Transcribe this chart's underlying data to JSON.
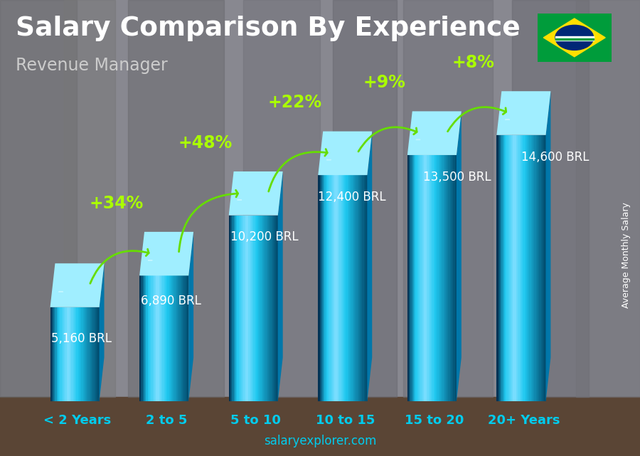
{
  "title": "Salary Comparison By Experience",
  "subtitle": "Revenue Manager",
  "ylabel": "Average Monthly Salary",
  "website": "salaryexplorer.com",
  "categories": [
    "< 2 Years",
    "2 to 5",
    "5 to 10",
    "10 to 15",
    "15 to 20",
    "20+ Years"
  ],
  "values": [
    5160,
    6890,
    10200,
    12400,
    13500,
    14600
  ],
  "value_labels": [
    "5,160 BRL",
    "6,890 BRL",
    "10,200 BRL",
    "12,400 BRL",
    "13,500 BRL",
    "14,600 BRL"
  ],
  "pct_changes": [
    "+34%",
    "+48%",
    "+22%",
    "+9%",
    "+8%"
  ],
  "bar_color_face": "#1ec8f0",
  "bar_color_side": "#0077aa",
  "bar_color_top": "#a0eeff",
  "bar_color_highlight": "#80dfff",
  "bg_color": "#555560",
  "title_color": "#ffffff",
  "subtitle_color": "#cccccc",
  "val_label_color": "#ffffff",
  "cat_color": "#00ccee",
  "pct_color": "#aaff00",
  "arrow_color": "#66dd00",
  "ylim_max": 17000,
  "title_fontsize": 27,
  "subtitle_fontsize": 17,
  "cat_fontsize": 13,
  "val_fontsize": 12,
  "pct_fontsize": 17,
  "flag_green": "#009c3b",
  "flag_yellow": "#ffdf00",
  "flag_blue": "#002776"
}
